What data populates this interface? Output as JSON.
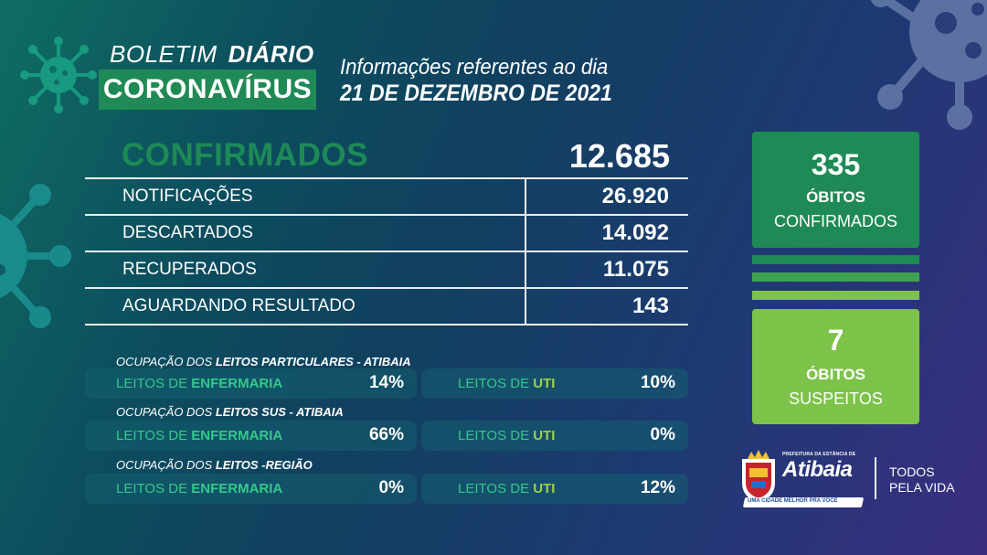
{
  "header": {
    "boletim": "BOLETIM",
    "diario": "DIÁRIO",
    "title": "CORONAVÍRUS",
    "info_line1": "Informações referentes ao dia",
    "info_date": "21 DE DEZEMBRO DE 2021"
  },
  "summary": {
    "confirmed_label": "CONFIRMADOS",
    "confirmed_value": "12.685",
    "rows": [
      {
        "label": "NOTIFICAÇÕES",
        "value": "26.920"
      },
      {
        "label": "DESCARTADOS",
        "value": "14.092"
      },
      {
        "label": "RECUPERADOS",
        "value": "11.075"
      },
      {
        "label": "AGUARDANDO RESULTADO",
        "value": "143"
      }
    ]
  },
  "occupancy": {
    "groups": [
      {
        "title_prefix": "OCUPAÇÃO DOS ",
        "title_bold": "LEITOS PARTICULARES - ATIBAIA",
        "ward_prefix": "LEITOS DE ",
        "ward_bold": "ENFERMARIA",
        "ward_value": "14%",
        "icu_prefix": "LEITOS DE ",
        "icu_bold": "UTI",
        "icu_value": "10%"
      },
      {
        "title_prefix": "OCUPAÇÃO DOS ",
        "title_bold": "LEITOS SUS - ATIBAIA",
        "ward_prefix": "LEITOS DE ",
        "ward_bold": "ENFERMARIA",
        "ward_value": "66%",
        "icu_prefix": "LEITOS DE ",
        "icu_bold": "UTI",
        "icu_value": "0%"
      },
      {
        "title_prefix": "OCUPAÇÃO DOS ",
        "title_bold": "LEITOS -REGIÃO",
        "ward_prefix": "LEITOS DE ",
        "ward_bold": "ENFERMARIA",
        "ward_value": "0%",
        "icu_prefix": "LEITOS DE ",
        "icu_bold": "UTI",
        "icu_value": "12%"
      }
    ]
  },
  "deaths": {
    "confirmed_value": "335",
    "confirmed_word1": "ÓBITOS",
    "confirmed_word2": "CONFIRMADOS",
    "suspected_value": "7",
    "suspected_word1": "ÓBITOS",
    "suspected_word2": "SUSPEITOS"
  },
  "footer": {
    "logo_top": "PREFEITURA DA ESTÂNCIA DE",
    "logo_name": "Atibaia",
    "logo_tagline": "UMA CIDADE MELHOR PRA VOCÊ",
    "slogan_line1": "TODOS",
    "slogan_line2": "PELA VIDA"
  },
  "colors": {
    "dark_green": "#1f8a55",
    "light_green": "#7dc249",
    "accent_green_text": "#33c98a"
  }
}
